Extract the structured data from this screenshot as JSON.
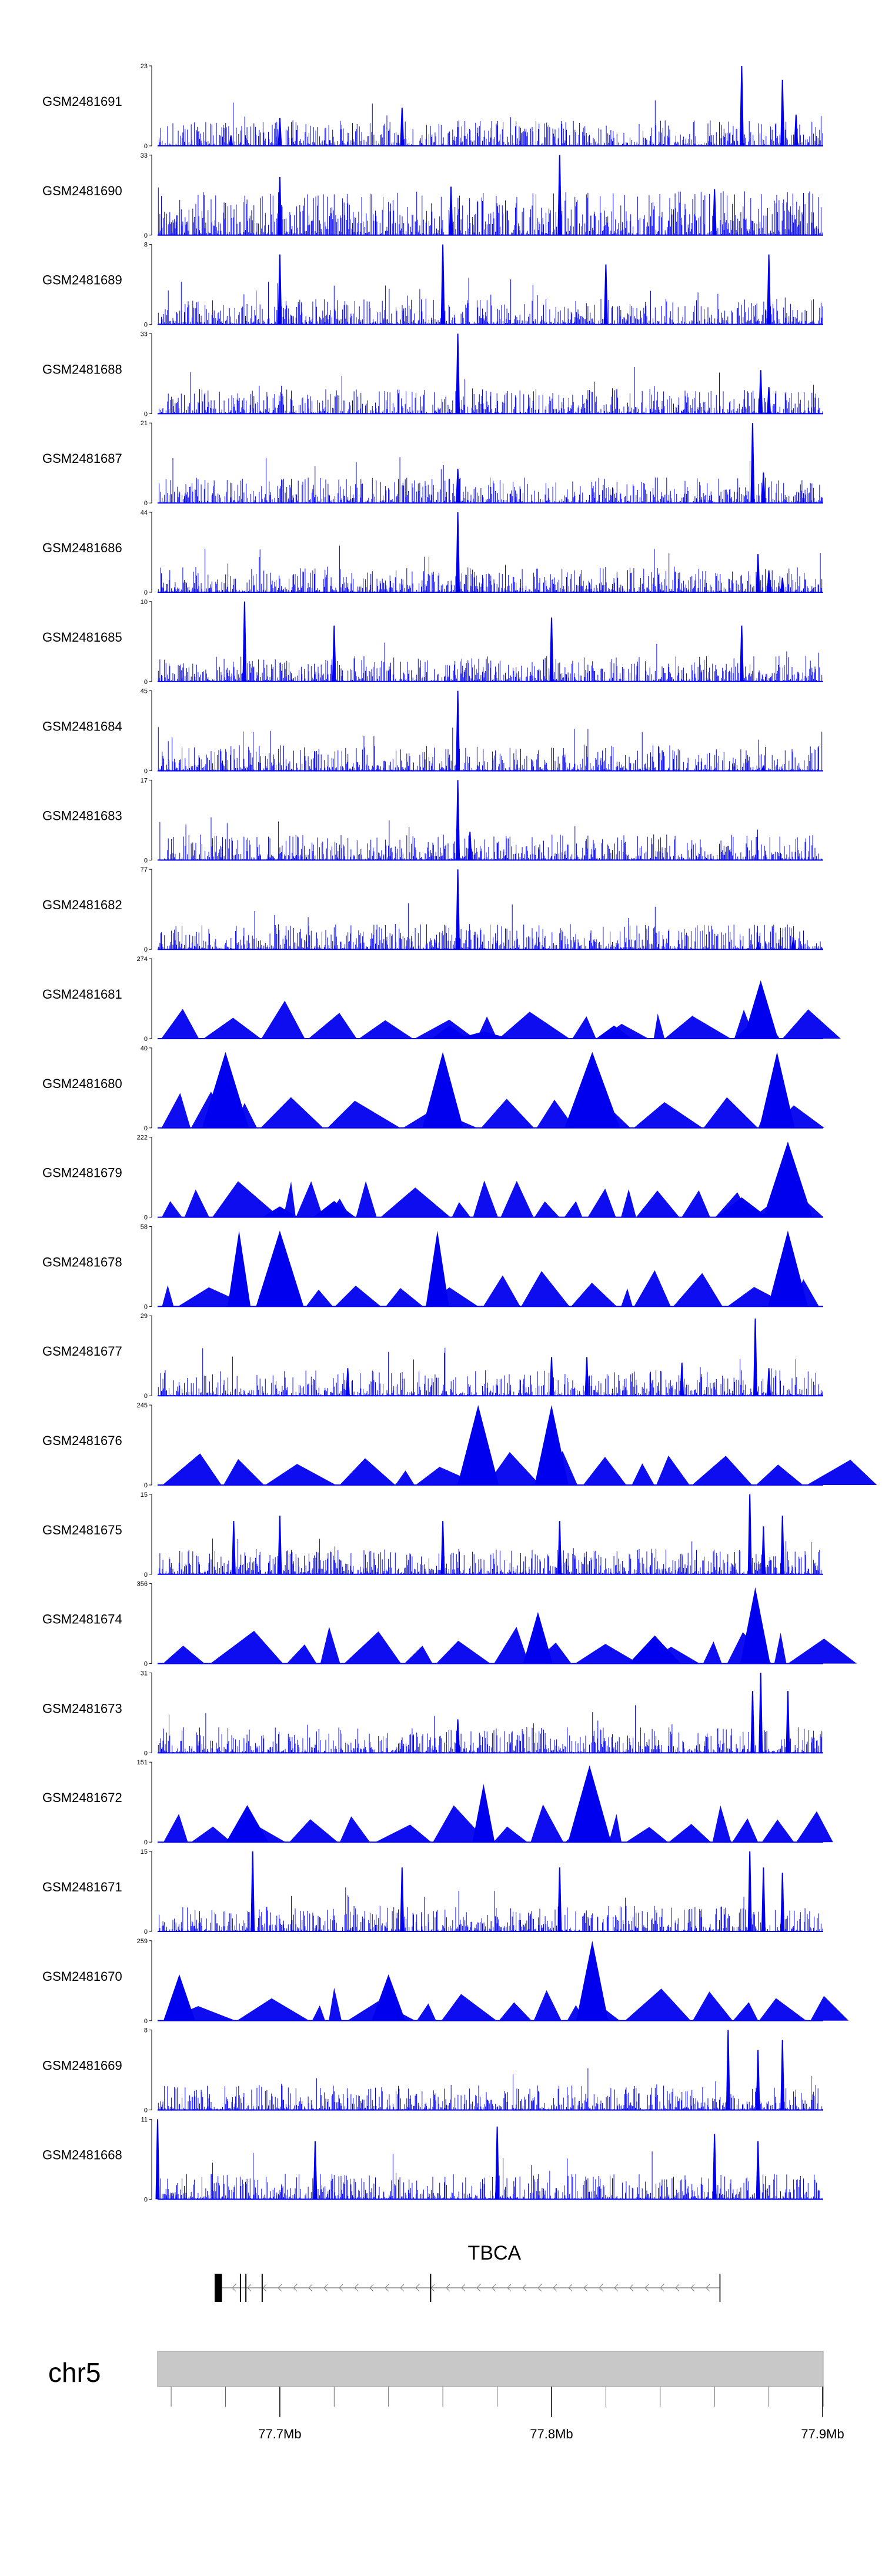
{
  "colors": {
    "track": "#0000ee",
    "ideogram": "#c8c8c8",
    "gene": "#000000"
  },
  "chart_data": {
    "type": "area",
    "title": "",
    "xlabel": "",
    "ylabel": "",
    "chromosome": "chr5",
    "xlim_mb": [
      77.655,
      77.9
    ],
    "x_ticks_mb": [
      77.7,
      77.8,
      77.9
    ],
    "x_tick_labels": [
      "77.7Mb",
      "77.8Mb",
      "77.9Mb"
    ],
    "gene": {
      "name": "TBCA",
      "start_mb": 77.676,
      "end_mb": 77.862,
      "strand": "-",
      "exons_mb": [
        77.676,
        77.6775,
        77.6785,
        77.6855,
        77.6875,
        77.6935,
        77.7555
      ]
    },
    "series": [
      {
        "name": "GSM2481691",
        "ymax": 23,
        "ymin": 0,
        "style": "dense",
        "peaks_mb": [
          [
            77.682,
            3
          ],
          [
            77.7,
            8
          ],
          [
            77.745,
            11
          ],
          [
            77.87,
            23
          ],
          [
            77.885,
            19
          ],
          [
            77.89,
            9
          ]
        ]
      },
      {
        "name": "GSM2481690",
        "ymax": 33,
        "ymin": 0,
        "style": "dense_sparse",
        "peaks_mb": [
          [
            77.7,
            24
          ],
          [
            77.763,
            20
          ],
          [
            77.803,
            33
          ],
          [
            77.86,
            19
          ]
        ]
      },
      {
        "name": "GSM2481689",
        "ymax": 8,
        "ymin": 0,
        "style": "dense",
        "peaks_mb": [
          [
            77.7,
            7
          ],
          [
            77.76,
            8
          ],
          [
            77.82,
            6
          ],
          [
            77.88,
            7
          ]
        ]
      },
      {
        "name": "GSM2481688",
        "ymax": 33,
        "ymin": 0,
        "style": "dense",
        "peaks_mb": [
          [
            77.7655,
            33
          ],
          [
            77.877,
            18
          ],
          [
            77.88,
            11
          ]
        ]
      },
      {
        "name": "GSM2481687",
        "ymax": 21,
        "ymin": 0,
        "style": "dense",
        "peaks_mb": [
          [
            77.7655,
            9
          ],
          [
            77.874,
            21
          ],
          [
            77.878,
            8
          ]
        ]
      },
      {
        "name": "GSM2481686",
        "ymax": 44,
        "ymin": 0,
        "style": "dense",
        "peaks_mb": [
          [
            77.7655,
            44
          ],
          [
            77.876,
            21
          ],
          [
            77.88,
            12
          ],
          [
            77.885,
            8
          ]
        ]
      },
      {
        "name": "GSM2481685",
        "ymax": 10,
        "ymin": 0,
        "style": "dense",
        "peaks_mb": [
          [
            77.687,
            10
          ],
          [
            77.72,
            7
          ],
          [
            77.8,
            8
          ],
          [
            77.87,
            7
          ]
        ]
      },
      {
        "name": "GSM2481684",
        "ymax": 45,
        "ymin": 0,
        "style": "dense",
        "peaks_mb": [
          [
            77.7655,
            45
          ],
          [
            77.878,
            3
          ]
        ]
      },
      {
        "name": "GSM2481683",
        "ymax": 17,
        "ymin": 0,
        "style": "dense",
        "peaks_mb": [
          [
            77.7655,
            17
          ],
          [
            77.77,
            6
          ]
        ]
      },
      {
        "name": "GSM2481682",
        "ymax": 77,
        "ymin": 0,
        "style": "dense",
        "peaks_mb": [
          [
            77.7655,
            77
          ],
          [
            77.876,
            7
          ],
          [
            77.889,
            11
          ]
        ]
      },
      {
        "name": "GSM2481681",
        "ymax": 274,
        "ymin": 0,
        "style": "triangles",
        "peaks_mb": [
          [
            77.7625,
            45
          ],
          [
            77.775,
            25
          ],
          [
            77.823,
            45
          ],
          [
            77.872,
            40
          ],
          [
            77.877,
            200
          ],
          [
            77.879,
            70
          ]
        ]
      },
      {
        "name": "GSM2481680",
        "ymax": 40,
        "ymin": 0,
        "style": "triangles",
        "peaks_mb": [
          [
            77.68,
            38
          ],
          [
            77.76,
            38
          ],
          [
            77.815,
            38
          ],
          [
            77.883,
            38
          ]
        ]
      },
      {
        "name": "GSM2481679",
        "ymax": 222,
        "ymin": 0,
        "style": "triangles",
        "peaks_mb": [
          [
            77.7,
            30
          ],
          [
            77.72,
            45
          ],
          [
            77.87,
            55
          ],
          [
            77.887,
            210
          ]
        ]
      },
      {
        "name": "GSM2481678",
        "ymax": 58,
        "ymin": 0,
        "style": "triangles",
        "peaks_mb": [
          [
            77.685,
            55
          ],
          [
            77.7,
            55
          ],
          [
            77.758,
            55
          ],
          [
            77.887,
            55
          ]
        ]
      },
      {
        "name": "GSM2481677",
        "ymax": 29,
        "ymin": 0,
        "style": "dense",
        "peaks_mb": [
          [
            77.725,
            10
          ],
          [
            77.8,
            14
          ],
          [
            77.813,
            14
          ],
          [
            77.848,
            12
          ],
          [
            77.875,
            28
          ],
          [
            77.88,
            10
          ]
        ]
      },
      {
        "name": "GSM2481676",
        "ymax": 245,
        "ymin": 0,
        "style": "triangles",
        "peaks_mb": [
          [
            77.773,
            245
          ],
          [
            77.8,
            245
          ]
        ]
      },
      {
        "name": "GSM2481675",
        "ymax": 15,
        "ymin": 0,
        "style": "dense",
        "peaks_mb": [
          [
            77.683,
            10
          ],
          [
            77.7,
            11
          ],
          [
            77.76,
            10
          ],
          [
            77.803,
            10
          ],
          [
            77.873,
            15
          ],
          [
            77.878,
            9
          ],
          [
            77.885,
            11
          ]
        ]
      },
      {
        "name": "GSM2481674",
        "ymax": 356,
        "ymin": 0,
        "style": "triangles",
        "peaks_mb": [
          [
            77.795,
            230
          ],
          [
            77.838,
            125
          ],
          [
            77.875,
            340
          ]
        ]
      },
      {
        "name": "GSM2481673",
        "ymax": 31,
        "ymin": 0,
        "style": "dense",
        "peaks_mb": [
          [
            77.7655,
            13
          ],
          [
            77.874,
            24
          ],
          [
            77.877,
            31
          ],
          [
            77.887,
            24
          ]
        ]
      },
      {
        "name": "GSM2481672",
        "ymax": 151,
        "ymin": 0,
        "style": "triangles",
        "peaks_mb": [
          [
            77.688,
            70
          ],
          [
            77.775,
            110
          ],
          [
            77.814,
            145
          ]
        ]
      },
      {
        "name": "GSM2481671",
        "ymax": 15,
        "ymin": 0,
        "style": "dense",
        "peaks_mb": [
          [
            77.69,
            15
          ],
          [
            77.745,
            12
          ],
          [
            77.803,
            12
          ],
          [
            77.873,
            15
          ],
          [
            77.878,
            12
          ],
          [
            77.885,
            11
          ]
        ]
      },
      {
        "name": "GSM2481670",
        "ymax": 259,
        "ymin": 0,
        "style": "triangles",
        "peaks_mb": [
          [
            77.663,
            150
          ],
          [
            77.74,
            150
          ],
          [
            77.815,
            259
          ],
          [
            77.815,
            110
          ]
        ]
      },
      {
        "name": "GSM2481669",
        "ymax": 8,
        "ymin": 0,
        "style": "dense",
        "peaks_mb": [
          [
            77.865,
            8
          ],
          [
            77.885,
            7
          ],
          [
            77.876,
            6
          ]
        ]
      },
      {
        "name": "GSM2481668",
        "ymax": 11,
        "ymin": 0,
        "style": "dense",
        "peaks_mb": [
          [
            77.655,
            11
          ],
          [
            77.713,
            8
          ],
          [
            77.78,
            10
          ],
          [
            77.86,
            9
          ],
          [
            77.876,
            8
          ]
        ]
      }
    ]
  }
}
